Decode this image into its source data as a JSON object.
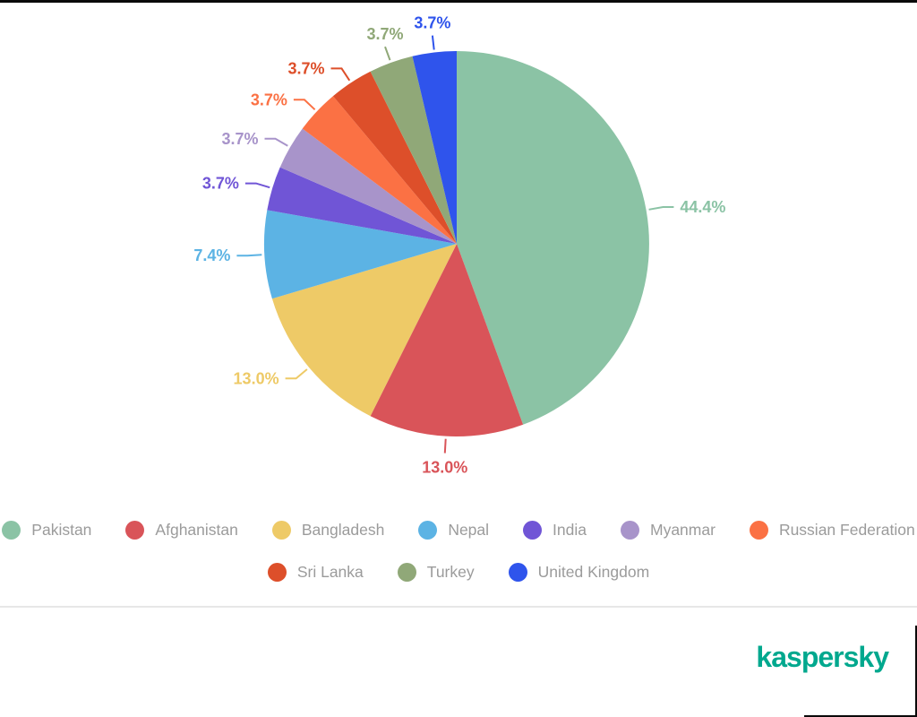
{
  "chart_data": {
    "type": "pie",
    "title": "",
    "unit": "%",
    "direction": "clockwise",
    "start_angle_deg": 0,
    "legend_position": "bottom",
    "legend_wrap": [
      7,
      3
    ],
    "slices": [
      {
        "label": "Pakistan",
        "value": 44.4,
        "display": "44.4%",
        "color": "#8bc3a5"
      },
      {
        "label": "Afghanistan",
        "value": 13.0,
        "display": "13.0%",
        "color": "#d95459"
      },
      {
        "label": "Bangladesh",
        "value": 13.0,
        "display": "13.0%",
        "color": "#eeca67"
      },
      {
        "label": "Nepal",
        "value": 7.4,
        "display": "7.4%",
        "color": "#5cb3e4"
      },
      {
        "label": "India",
        "value": 3.7,
        "display": "3.7%",
        "color": "#7055d6"
      },
      {
        "label": "Myanmar",
        "value": 3.7,
        "display": "3.7%",
        "color": "#a894ca"
      },
      {
        "label": "Russian Federation",
        "value": 3.7,
        "display": "3.7%",
        "color": "#fb7144"
      },
      {
        "label": "Sri Lanka",
        "value": 3.7,
        "display": "3.7%",
        "color": "#dd4f2a"
      },
      {
        "label": "Turkey",
        "value": 3.7,
        "display": "3.7%",
        "color": "#90a878"
      },
      {
        "label": "United Kingdom",
        "value": 3.7,
        "display": "3.7%",
        "color": "#2f54ec"
      }
    ]
  },
  "legend_text_color": "#9b9b9b",
  "footer": {
    "brand": "kaspersky",
    "brand_color": "#00a88e"
  }
}
